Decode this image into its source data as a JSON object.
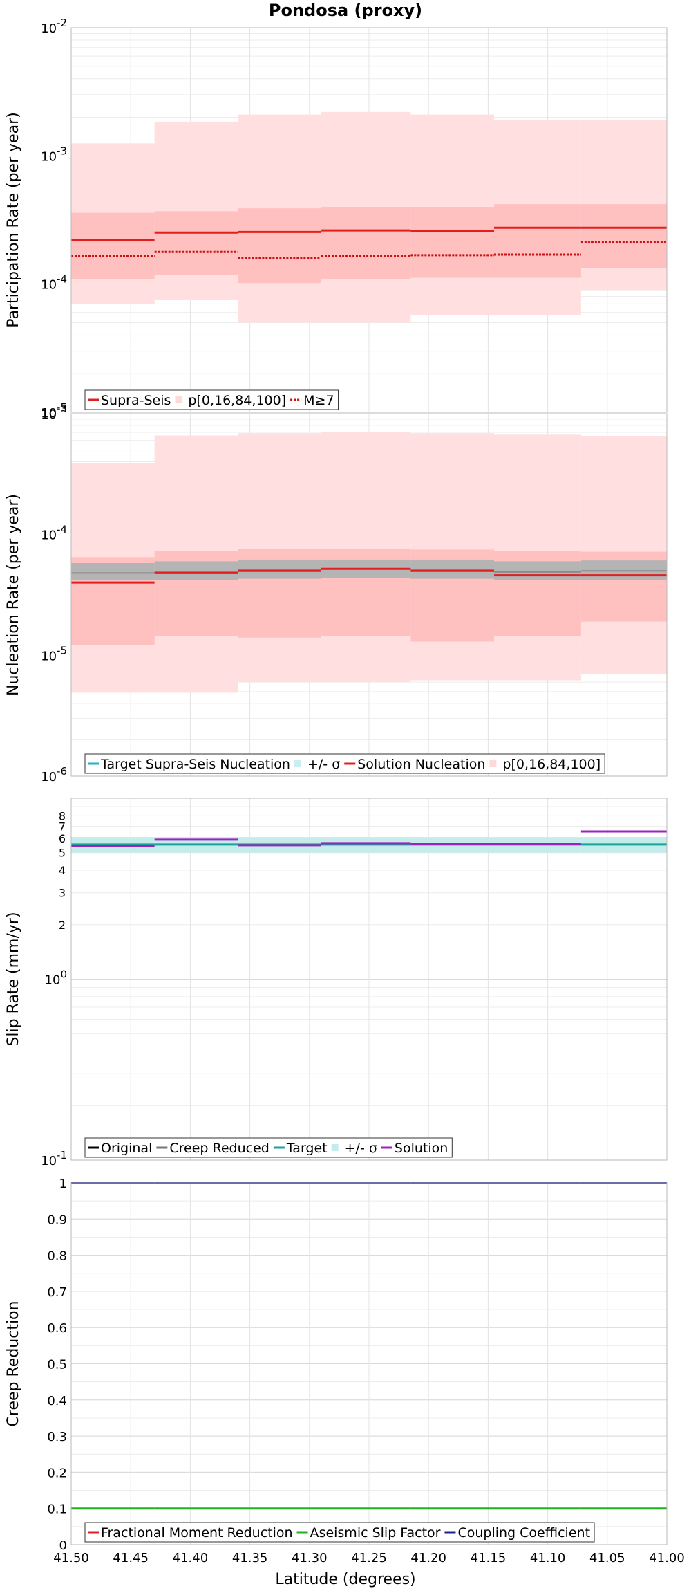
{
  "chart_data": {
    "title": "Pondosa (proxy)",
    "xlabel": "Latitude (degrees)",
    "xlim": [
      41.5,
      41.0
    ],
    "x_ticks": [
      "41.50",
      "41.45",
      "41.40",
      "41.35",
      "41.30",
      "41.25",
      "41.20",
      "41.15",
      "41.10",
      "41.05",
      "41.00"
    ],
    "x_tick_values": [
      41.5,
      41.45,
      41.4,
      41.35,
      41.3,
      41.25,
      41.2,
      41.15,
      41.1,
      41.05,
      41.0
    ],
    "section_bounds": [
      41.5,
      41.43,
      41.36,
      41.29,
      41.215,
      41.145,
      41.072,
      41.0
    ],
    "grid": true,
    "panels": [
      {
        "type": "step-line",
        "ylabel": "Participation Rate (per year)",
        "yscale": "log",
        "ylim": [
          1e-05,
          0.01
        ],
        "y_ticks": [
          {
            "base": "10",
            "exp": "-5",
            "value": 1e-05
          },
          {
            "base": "10",
            "exp": "-4",
            "value": 0.0001
          },
          {
            "base": "10",
            "exp": "-3",
            "value": 0.001
          },
          {
            "base": "10",
            "exp": "-2",
            "value": 0.01
          }
        ],
        "legend": [
          {
            "label": "Supra-Seis",
            "color": "#e02020",
            "style": "solid"
          },
          {
            "label": "p[0,16,84,100]",
            "color": "#ffd8d8",
            "style": "box"
          },
          {
            "label": "M≥7",
            "color": "#c81010",
            "style": "dotted"
          }
        ],
        "bands": [
          {
            "name": "p0-p100",
            "color": "#ffdfdf",
            "lo": [
              7e-05,
              7.5e-05,
              5e-05,
              5e-05,
              5.7e-05,
              5.7e-05,
              9e-05,
              9e-05
            ],
            "hi": [
              0.00125,
              0.00185,
              0.0021,
              0.0022,
              0.0021,
              0.0019,
              0.0019,
              0.0014
            ]
          },
          {
            "name": "p16-p84",
            "color": "#ffc0c0",
            "lo": [
              0.00011,
              0.000118,
              0.000102,
              0.00011,
              0.000112,
              0.000112,
              0.000133,
              0.000138
            ],
            "hi": [
              0.00036,
              0.00037,
              0.00039,
              0.0004,
              0.0004,
              0.00042,
              0.00042,
              0.0004
            ]
          }
        ],
        "series": [
          {
            "name": "Supra-Seis",
            "color": "#e02020",
            "style": "solid",
            "width": 3,
            "values": [
              0.00022,
              0.000252,
              0.000255,
              0.000262,
              0.000258,
              0.000275,
              0.000275,
              0.000265
            ]
          },
          {
            "name": "M≥7",
            "color": "#c81010",
            "style": "dotted",
            "width": 3,
            "values": [
              0.000165,
              0.000178,
              0.00016,
              0.000165,
              0.000168,
              0.00017,
              0.000213,
              0.00022
            ]
          }
        ]
      },
      {
        "type": "step-line",
        "ylabel": "Nucleation Rate (per year)",
        "yscale": "log",
        "ylim": [
          1e-06,
          0.001
        ],
        "y_ticks": [
          {
            "base": "10",
            "exp": "-6",
            "value": 1e-06
          },
          {
            "base": "10",
            "exp": "-5",
            "value": 1e-05
          },
          {
            "base": "10",
            "exp": "-4",
            "value": 0.0001
          },
          {
            "base": "10",
            "exp": "-3",
            "value": 0.001
          }
        ],
        "legend": [
          {
            "label": "Target Supra-Seis Nucleation",
            "color": "#20b0d0",
            "style": "solid"
          },
          {
            "label": "+/- σ",
            "color": "#c8eef2",
            "style": "box"
          },
          {
            "label": "Solution Nucleation",
            "color": "#e02020",
            "style": "solid"
          },
          {
            "label": "p[0,16,84,100]",
            "color": "#ffd8d8",
            "style": "box"
          }
        ],
        "bands": [
          {
            "name": "p0-p100",
            "color": "#ffdfdf",
            "lo": [
              4.9e-06,
              4.9e-06,
              6e-06,
              6e-06,
              6.2e-06,
              6.2e-06,
              7e-06,
              1.3e-05
            ],
            "hi": [
              0.00039,
              0.00066,
              0.00069,
              0.0007,
              0.00069,
              0.00067,
              0.00065,
              0.00039
            ]
          },
          {
            "name": "p16-p84",
            "color": "#ffc0c0",
            "lo": [
              1.21e-05,
              1.45e-05,
              1.4e-05,
              1.45e-05,
              1.3e-05,
              1.45e-05,
              1.9e-05,
              1.9e-05
            ],
            "hi": [
              6.5e-05,
              7.3e-05,
              7.6e-05,
              7.6e-05,
              7.5e-05,
              7.3e-05,
              7.2e-05,
              7.1e-05
            ]
          },
          {
            "name": "target +/- sigma",
            "color": "#b4b4b4",
            "lo": [
              4.2e-05,
              4.2e-05,
              4.3e-05,
              4.4e-05,
              4.3e-05,
              4.2e-05,
              4.2e-05,
              4.2e-05
            ],
            "hi": [
              5.8e-05,
              6e-05,
              6.2e-05,
              6.2e-05,
              6.2e-05,
              6e-05,
              6.1e-05,
              6.1e-05
            ]
          }
        ],
        "series": [
          {
            "name": "Target Supra-Seis Nucleation",
            "color": "#8a8a8a",
            "style": "solid",
            "width": 2,
            "values": [
              4.8e-05,
              4.9e-05,
              5.1e-05,
              5.2e-05,
              5.1e-05,
              4.9e-05,
              5e-05,
              5.1e-05
            ]
          },
          {
            "name": "Solution Nucleation",
            "color": "#e02020",
            "style": "solid",
            "width": 3,
            "values": [
              4e-05,
              4.8e-05,
              5e-05,
              5.2e-05,
              5e-05,
              4.6e-05,
              4.6e-05,
              4.5e-05
            ]
          }
        ]
      },
      {
        "type": "step-line",
        "ylabel": "Slip Rate (mm/yr)",
        "yscale": "log",
        "ylim": [
          0.1,
          10
        ],
        "y_ticks": [
          {
            "base": "10",
            "exp": "-1",
            "value": 0.1
          },
          {
            "base": "10",
            "exp": "0",
            "value": 1
          }
        ],
        "minor_labels": [
          {
            "label": "2",
            "value": 2
          },
          {
            "label": "3",
            "value": 3
          },
          {
            "label": "4",
            "value": 4
          },
          {
            "label": "5",
            "value": 5
          },
          {
            "label": "6",
            "value": 6
          },
          {
            "label": "7",
            "value": 7
          },
          {
            "label": "8",
            "value": 8
          }
        ],
        "legend": [
          {
            "label": "Original",
            "color": "#000000",
            "style": "solid"
          },
          {
            "label": "Creep Reduced",
            "color": "#777777",
            "style": "solid"
          },
          {
            "label": "Target",
            "color": "#17a398",
            "style": "solid"
          },
          {
            "label": "+/- σ",
            "color": "#c4eceb",
            "style": "box"
          },
          {
            "label": "Solution",
            "color": "#a020c0",
            "style": "solid"
          }
        ],
        "bands": [
          {
            "name": "target +/- sigma",
            "color": "#c4eceb",
            "lo": [
              5.0,
              5.0,
              5.0,
              5.0,
              5.0,
              5.0,
              5.0,
              5.0
            ],
            "hi": [
              6.1,
              6.1,
              6.1,
              6.1,
              6.1,
              6.1,
              6.1,
              6.1
            ]
          }
        ],
        "series": [
          {
            "name": "Target",
            "color": "#17a398",
            "style": "solid",
            "width": 3,
            "values": [
              5.55,
              5.55,
              5.55,
              5.55,
              5.55,
              5.55,
              5.55,
              5.55
            ]
          },
          {
            "name": "Solution",
            "color": "#a020c0",
            "style": "solid",
            "width": 3,
            "values": [
              5.45,
              5.9,
              5.5,
              5.65,
              5.6,
              5.6,
              6.55,
              6.1
            ]
          }
        ]
      },
      {
        "type": "step-line",
        "ylabel": "Creep Reduction",
        "yscale": "linear",
        "ylim": [
          0,
          1
        ],
        "y_ticks": [
          {
            "label": "0",
            "value": 0
          },
          {
            "label": "0.1",
            "value": 0.1
          },
          {
            "label": "0.2",
            "value": 0.2
          },
          {
            "label": "0.3",
            "value": 0.3
          },
          {
            "label": "0.4",
            "value": 0.4
          },
          {
            "label": "0.5",
            "value": 0.5
          },
          {
            "label": "0.6",
            "value": 0.6
          },
          {
            "label": "0.7",
            "value": 0.7
          },
          {
            "label": "0.8",
            "value": 0.8
          },
          {
            "label": "0.9",
            "value": 0.9
          },
          {
            "label": "1",
            "value": 1
          }
        ],
        "legend": [
          {
            "label": "Fractional Moment Reduction",
            "color": "#e02020",
            "style": "solid"
          },
          {
            "label": "Aseismic Slip Factor",
            "color": "#20b020",
            "style": "solid"
          },
          {
            "label": "Coupling Coefficient",
            "color": "#202090",
            "style": "solid"
          }
        ],
        "bands": [],
        "series": [
          {
            "name": "Coupling Coefficient",
            "color": "#202090",
            "style": "solid",
            "width": 2,
            "values": [
              1,
              1,
              1,
              1,
              1,
              1,
              1,
              1
            ]
          },
          {
            "name": "Aseismic Slip Factor",
            "color": "#20b020",
            "style": "solid",
            "width": 3,
            "values": [
              0.1,
              0.1,
              0.1,
              0.1,
              0.1,
              0.1,
              0.1,
              0.1
            ]
          }
        ]
      }
    ]
  }
}
